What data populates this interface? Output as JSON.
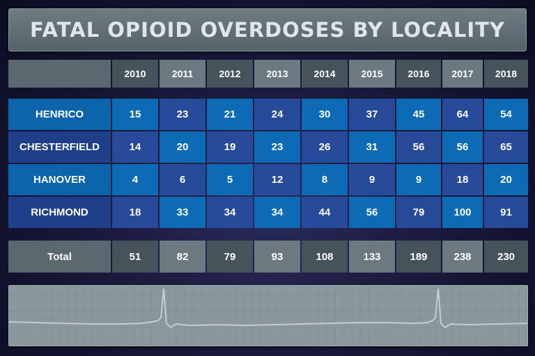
{
  "title": "FATAL OPIOID OVERDOSES BY LOCALITY",
  "chart_data": {
    "type": "table",
    "title": "FATAL OPIOID OVERDOSES BY LOCALITY",
    "columns": [
      "2010",
      "2011",
      "2012",
      "2013",
      "2014",
      "2015",
      "2016",
      "2017",
      "2018"
    ],
    "rows": [
      {
        "name": "HENRICO",
        "values": [
          "15",
          "23",
          "21",
          "24",
          "30",
          "37",
          "45",
          "64",
          "54"
        ]
      },
      {
        "name": "CHESTERFIELD",
        "values": [
          "14",
          "20",
          "19",
          "23",
          "26",
          "31",
          "56",
          "56",
          "65"
        ]
      },
      {
        "name": "HANOVER",
        "values": [
          "4",
          "6",
          "5",
          "12",
          "8",
          "9",
          "9",
          "18",
          "20"
        ]
      },
      {
        "name": "RICHMOND",
        "values": [
          "18",
          "33",
          "34",
          "34",
          "44",
          "56",
          "79",
          "100",
          "91"
        ]
      }
    ],
    "total": {
      "name": "Total",
      "values": [
        "51",
        "82",
        "79",
        "93",
        "108",
        "133",
        "189",
        "238",
        "230"
      ]
    }
  },
  "colors": {
    "header_dark": "#46535a",
    "header_light": "#6c7980",
    "blue_dark": "#274a9a",
    "blue_light": "#0d6ab4",
    "ekg_line": "#c4cdd0"
  },
  "decoration": {
    "ekg_icon": "heartbeat-line-icon"
  }
}
